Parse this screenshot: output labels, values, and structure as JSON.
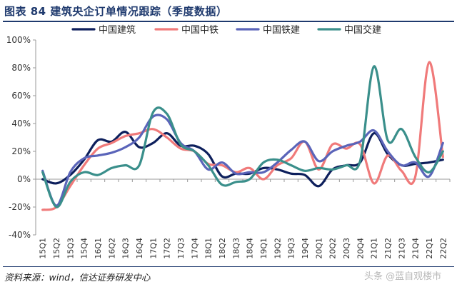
{
  "header": {
    "title": "图表 84 建筑央企订单情况跟踪（季度数据）"
  },
  "footer": {
    "source": "资料来源：wind，信达证券研发中心"
  },
  "watermark": {
    "text": "头条 @蓝自观楼市"
  },
  "chart_data": {
    "type": "line",
    "title": "",
    "xlabel": "",
    "ylabel": "",
    "ylim": [
      -0.4,
      1.0
    ],
    "yticks": [
      "-40%",
      "-20%",
      "0%",
      "20%",
      "40%",
      "60%",
      "80%",
      "100%"
    ],
    "ytick_values": [
      -0.4,
      -0.2,
      0,
      0.2,
      0.4,
      0.6,
      0.8,
      1.0
    ],
    "grid": false,
    "legend": "top",
    "categories": [
      "15Q1",
      "15Q2",
      "15Q3",
      "15Q4",
      "16Q1",
      "16Q2",
      "16Q3",
      "16Q4",
      "17Q1",
      "17Q2",
      "17Q3",
      "17Q4",
      "18Q1",
      "18Q2",
      "18Q3",
      "18Q4",
      "19Q1",
      "19Q2",
      "19Q3",
      "19Q4",
      "20Q1",
      "20Q2",
      "20Q3",
      "20Q4",
      "21Q1",
      "21Q2",
      "21Q3",
      "21Q4",
      "22Q1",
      "22Q2"
    ],
    "series": [
      {
        "name": "中国建筑",
        "color": "#0d1f5c",
        "values": [
          0.0,
          -0.03,
          0.03,
          0.14,
          0.28,
          0.27,
          0.34,
          0.23,
          0.26,
          0.33,
          0.24,
          0.24,
          0.18,
          0.02,
          0.04,
          0.04,
          0.08,
          0.07,
          0.04,
          0.03,
          -0.05,
          0.07,
          0.1,
          0.12,
          0.33,
          0.18,
          0.1,
          0.11,
          0.12,
          0.14
        ]
      },
      {
        "name": "中国中铁",
        "color": "#f07a7a",
        "values": [
          -0.22,
          -0.2,
          -0.05,
          0.1,
          0.22,
          0.26,
          0.31,
          0.33,
          0.36,
          0.3,
          0.22,
          0.2,
          0.11,
          0.1,
          0.05,
          0.08,
          0.0,
          0.1,
          0.15,
          0.27,
          0.07,
          0.25,
          0.22,
          0.25,
          -0.03,
          0.17,
          0.06,
          0.02,
          0.84,
          0.16
        ]
      },
      {
        "name": "中国铁建",
        "color": "#5a64b9",
        "values": [
          0.06,
          -0.19,
          0.05,
          0.15,
          0.17,
          0.19,
          0.23,
          0.3,
          0.45,
          0.43,
          0.26,
          0.2,
          0.07,
          0.12,
          0.04,
          0.05,
          0.05,
          0.12,
          0.21,
          0.27,
          0.13,
          0.2,
          0.24,
          0.27,
          0.35,
          0.2,
          0.1,
          0.12,
          0.02,
          0.26
        ]
      },
      {
        "name": "中国交建",
        "color": "#3a8f8b",
        "values": [
          0.05,
          -0.2,
          -0.02,
          0.05,
          0.03,
          0.08,
          0.1,
          0.1,
          0.48,
          0.47,
          0.25,
          0.2,
          0.1,
          -0.04,
          -0.02,
          0.0,
          0.12,
          0.14,
          0.1,
          0.06,
          0.08,
          0.07,
          0.1,
          0.13,
          0.81,
          0.28,
          0.36,
          0.16,
          0.05,
          0.2
        ]
      }
    ]
  }
}
